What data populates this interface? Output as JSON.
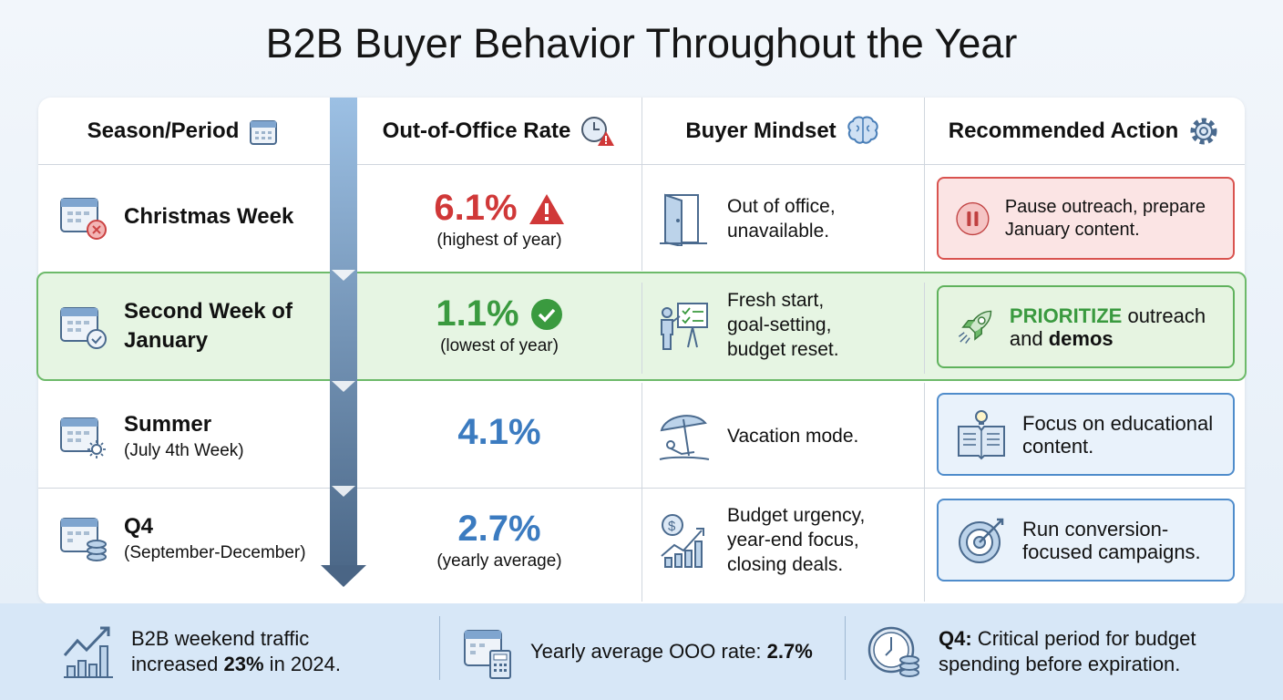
{
  "title": "B2B Buyer Behavior Throughout the Year",
  "headers": {
    "period": "Season/Period",
    "rate": "Out-of-Office Rate",
    "mindset": "Buyer Mindset",
    "action": "Recommended Action"
  },
  "rows": [
    {
      "period": "Christmas Week",
      "period_sub": "",
      "rate": "6.1%",
      "rate_note": "(highest of year)",
      "rate_color": "#d03838",
      "status_icon": "warning-icon",
      "period_icon": "calendar-x-icon",
      "mindset": "Out of office, unavailable.",
      "mindset_icon": "door-icon",
      "action": "Pause outreach, prepare January content.",
      "action_icon": "pause-icon",
      "highlight": false
    },
    {
      "period": "Second Week of January",
      "period_sub": "",
      "rate": "1.1%",
      "rate_note": "(lowest of year)",
      "rate_color": "#3a9a3f",
      "status_icon": "check-circle-icon",
      "period_icon": "calendar-check-icon",
      "mindset": "Fresh start, goal-setting, budget reset.",
      "mindset_icon": "presentation-icon",
      "action_strong": "PRIORITIZE",
      "action_mid": " outreach and ",
      "action_bold2": "demos",
      "action_icon": "rocket-icon",
      "highlight": true
    },
    {
      "period": "Summer",
      "period_sub": "(July 4th Week)",
      "rate": "4.1%",
      "rate_note": "",
      "rate_color": "#3b7bc0",
      "period_icon": "calendar-sun-icon",
      "mindset": "Vacation mode.",
      "mindset_icon": "beach-umbrella-icon",
      "action": "Focus on educational content.",
      "action_icon": "book-lightbulb-icon",
      "highlight": false
    },
    {
      "period": "Q4",
      "period_sub": "(September-December)",
      "rate": "2.7%",
      "rate_note": "(yearly average)",
      "rate_color": "#3b7bc0",
      "period_icon": "calendar-coins-icon",
      "mindset": "Budget urgency, year-end focus, closing deals.",
      "mindset_icon": "growth-chart-icon",
      "action": "Run conversion-focused campaigns.",
      "action_icon": "target-icon",
      "highlight": false
    }
  ],
  "footer": {
    "item1_a": "B2B weekend traffic increased ",
    "item1_b": "23%",
    "item1_c": " in 2024.",
    "item2_a": "Yearly average OOO rate: ",
    "item2_b": "2.7%",
    "item3_a": "Q4:",
    "item3_b": " Critical period for budget spending before expiration."
  },
  "colors": {
    "red": "#d03838",
    "green": "#3a9a3f",
    "blue": "#3b7bc0",
    "arrow_top": "#9cc0e4",
    "arrow_bottom": "#4c6888"
  }
}
